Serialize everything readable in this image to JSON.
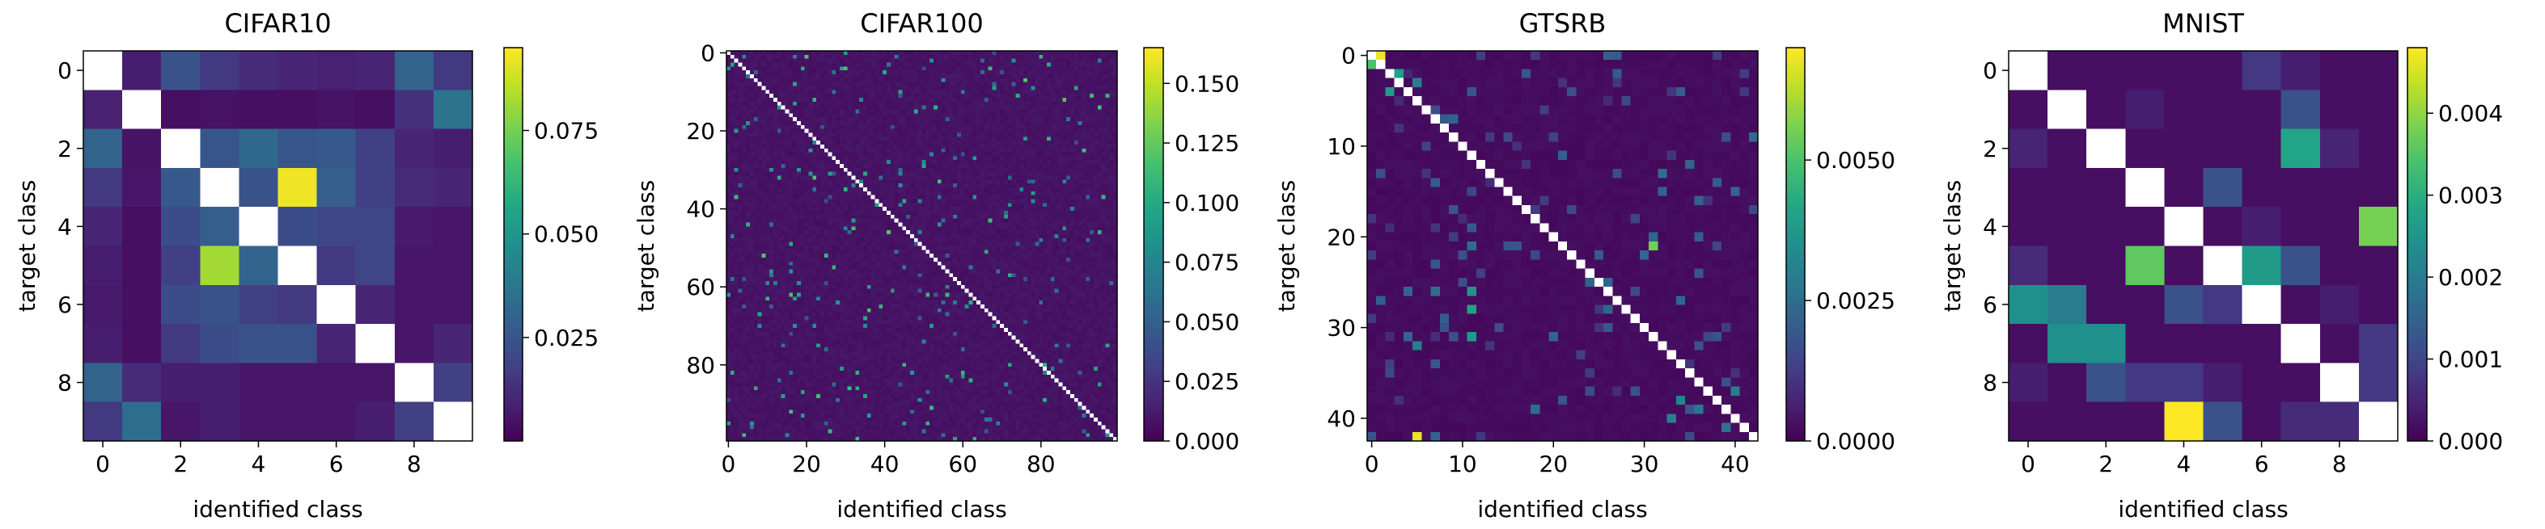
{
  "colormap": "viridis",
  "diagonal_color": "#ffffff",
  "chart_data": [
    {
      "type": "heatmap",
      "title": "CIFAR10",
      "xlabel": "identified class",
      "ylabel": "target class",
      "n": 10,
      "x_ticks": [
        "0",
        "2",
        "4",
        "6",
        "8"
      ],
      "x_tick_values": [
        0,
        2,
        4,
        6,
        8
      ],
      "y_ticks": [
        "0",
        "2",
        "4",
        "6",
        "8"
      ],
      "y_tick_values": [
        0,
        2,
        4,
        6,
        8
      ],
      "colorbar": {
        "vmin": 0,
        "vmax": 0.095,
        "ticks": [
          "0.025",
          "0.050",
          "0.075"
        ],
        "tick_values": [
          0.025,
          0.05,
          0.075
        ]
      },
      "matrix": [
        [
          null,
          0.008,
          0.024,
          0.016,
          0.012,
          0.01,
          0.009,
          0.01,
          0.03,
          0.016
        ],
        [
          0.009,
          null,
          0.004,
          0.005,
          0.004,
          0.004,
          0.005,
          0.004,
          0.014,
          0.036
        ],
        [
          0.03,
          0.005,
          null,
          0.025,
          0.032,
          0.025,
          0.026,
          0.018,
          0.01,
          0.008
        ],
        [
          0.016,
          0.006,
          0.026,
          null,
          0.024,
          0.093,
          0.028,
          0.018,
          0.012,
          0.01
        ],
        [
          0.01,
          0.004,
          0.022,
          0.028,
          null,
          0.022,
          0.02,
          0.02,
          0.007,
          0.006
        ],
        [
          0.008,
          0.004,
          0.018,
          0.082,
          0.03,
          null,
          0.016,
          0.02,
          0.006,
          0.006
        ],
        [
          0.007,
          0.004,
          0.022,
          0.024,
          0.018,
          0.016,
          null,
          0.01,
          0.006,
          0.006
        ],
        [
          0.008,
          0.004,
          0.016,
          0.022,
          0.024,
          0.024,
          0.01,
          null,
          0.006,
          0.01
        ],
        [
          0.03,
          0.012,
          0.008,
          0.008,
          0.006,
          0.006,
          0.006,
          0.006,
          null,
          0.018
        ],
        [
          0.016,
          0.034,
          0.006,
          0.008,
          0.006,
          0.006,
          0.006,
          0.008,
          0.018,
          null
        ]
      ]
    },
    {
      "type": "heatmap",
      "title": "CIFAR100",
      "xlabel": "identified class",
      "ylabel": "target class",
      "n": 100,
      "x_ticks": [
        "0",
        "20",
        "40",
        "60",
        "80"
      ],
      "x_tick_values": [
        0,
        20,
        40,
        60,
        80
      ],
      "y_ticks": [
        "0",
        "20",
        "40",
        "60",
        "80"
      ],
      "y_tick_values": [
        0,
        20,
        40,
        60,
        80
      ],
      "colorbar": {
        "vmin": 0,
        "vmax": 0.165,
        "ticks": [
          "0.000",
          "0.025",
          "0.050",
          "0.075",
          "0.100",
          "0.125",
          "0.150"
        ],
        "tick_values": [
          0,
          0.025,
          0.05,
          0.075,
          0.1,
          0.125,
          0.15
        ]
      },
      "pattern": {
        "base": 0.006,
        "noise": 0.01,
        "sparse_fraction": 0.03,
        "sparse_min": 0.04,
        "sparse_max": 0.12,
        "seed": 7
      }
    },
    {
      "type": "heatmap",
      "title": "GTSRB",
      "xlabel": "identified class",
      "ylabel": "target class",
      "n": 43,
      "x_ticks": [
        "0",
        "10",
        "20",
        "30",
        "40"
      ],
      "x_tick_values": [
        0,
        10,
        20,
        30,
        40
      ],
      "y_ticks": [
        "0",
        "10",
        "20",
        "30",
        "40"
      ],
      "y_tick_values": [
        0,
        10,
        20,
        30,
        40
      ],
      "colorbar": {
        "vmin": 0,
        "vmax": 0.007,
        "ticks": [
          "0.0000",
          "0.0025",
          "0.0050"
        ],
        "tick_values": [
          0,
          0.0025,
          0.005
        ]
      },
      "pattern": {
        "base": 0.00015,
        "noise": 0.0003,
        "sparse_fraction": 0.06,
        "sparse_min": 0.0008,
        "sparse_max": 0.0025,
        "seed": 11
      },
      "highlights": [
        {
          "r": 0,
          "c": 1,
          "v": 0.0068
        },
        {
          "r": 1,
          "c": 0,
          "v": 0.005
        },
        {
          "r": 2,
          "c": 3,
          "v": 0.004
        },
        {
          "r": 4,
          "c": 2,
          "v": 0.0038
        },
        {
          "r": 3,
          "c": 5,
          "v": 0.003
        },
        {
          "r": 21,
          "c": 31,
          "v": 0.0055
        },
        {
          "r": 28,
          "c": 11,
          "v": 0.004
        },
        {
          "r": 26,
          "c": 11,
          "v": 0.0036
        },
        {
          "r": 31,
          "c": 11,
          "v": 0.0038
        },
        {
          "r": 32,
          "c": 5,
          "v": 0.003
        },
        {
          "r": 42,
          "c": 5,
          "v": 0.0068
        },
        {
          "r": 38,
          "c": 34,
          "v": 0.0032
        },
        {
          "r": 39,
          "c": 36,
          "v": 0.0028
        },
        {
          "r": 40,
          "c": 33,
          "v": 0.003
        },
        {
          "r": 37,
          "c": 40,
          "v": 0.003
        },
        {
          "r": 41,
          "c": 39,
          "v": 0.0026
        }
      ]
    },
    {
      "type": "heatmap",
      "title": "MNIST",
      "xlabel": "identified class",
      "ylabel": "target class",
      "n": 10,
      "x_ticks": [
        "0",
        "2",
        "4",
        "6",
        "8"
      ],
      "x_tick_values": [
        0,
        2,
        4,
        6,
        8
      ],
      "y_ticks": [
        "0",
        "2",
        "4",
        "6",
        "8"
      ],
      "y_tick_values": [
        0,
        2,
        4,
        6,
        8
      ],
      "colorbar": {
        "vmin": 0,
        "vmax": 0.0048,
        "ticks": [
          "0.000",
          "0.001",
          "0.002",
          "0.003",
          "0.004"
        ],
        "tick_values": [
          0,
          0.001,
          0.002,
          0.003,
          0.004
        ]
      },
      "matrix": [
        [
          null,
          0.0002,
          0.0002,
          0.0002,
          0.0002,
          0.0002,
          0.0008,
          0.0004,
          0.0002,
          0.0002
        ],
        [
          0.0002,
          null,
          0.0002,
          0.0004,
          0.0002,
          0.0002,
          0.0002,
          0.0012,
          0.0002,
          0.0002
        ],
        [
          0.0005,
          0.0002,
          null,
          0.0002,
          0.0002,
          0.0002,
          0.0002,
          0.0028,
          0.0005,
          0.0002
        ],
        [
          0.0002,
          0.0002,
          0.0002,
          null,
          0.0002,
          0.0012,
          0.0002,
          0.0002,
          0.0002,
          0.0002
        ],
        [
          0.0002,
          0.0002,
          0.0002,
          0.0002,
          null,
          0.0002,
          0.0004,
          0.0002,
          0.0002,
          0.0038
        ],
        [
          0.0006,
          0.0002,
          0.0002,
          0.0036,
          0.0002,
          null,
          0.0026,
          0.0012,
          0.0002,
          0.0002
        ],
        [
          0.0024,
          0.002,
          0.0002,
          0.0002,
          0.0012,
          0.0008,
          null,
          0.0002,
          0.0004,
          0.0002
        ],
        [
          0.0002,
          0.0024,
          0.0024,
          0.0002,
          0.0002,
          0.0002,
          0.0002,
          null,
          0.0002,
          0.0008
        ],
        [
          0.0004,
          0.0002,
          0.0012,
          0.0008,
          0.0008,
          0.0004,
          0.0002,
          0.0002,
          null,
          0.0008
        ],
        [
          0.0002,
          0.0002,
          0.0002,
          0.0002,
          0.0048,
          0.0012,
          0.0002,
          0.0006,
          0.0006,
          null
        ]
      ]
    }
  ]
}
